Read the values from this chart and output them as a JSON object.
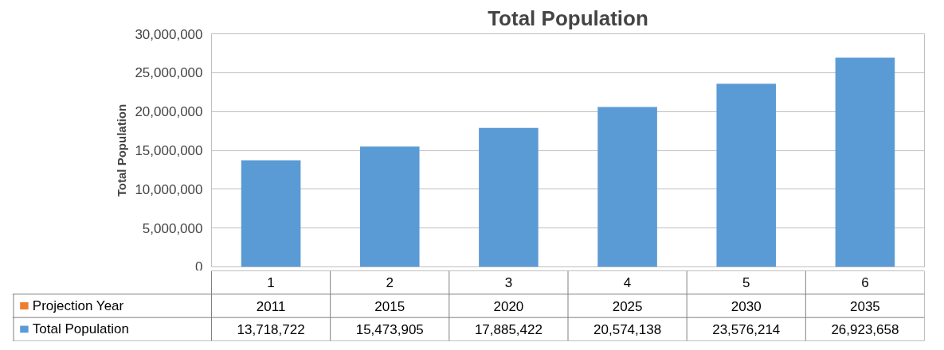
{
  "chart_data": {
    "type": "bar",
    "title": "Total Population",
    "ylabel": "Total Population",
    "stacked": true,
    "categories": [
      "1",
      "2",
      "3",
      "4",
      "5",
      "6"
    ],
    "series": [
      {
        "name": "Total Population",
        "color": "#5b9bd5",
        "values": [
          13718722,
          15473905,
          17885422,
          20574138,
          23576214,
          26923658
        ],
        "value_labels": [
          "13,718,722",
          "15,473,905",
          "17,885,422",
          "20,574,138",
          "23,576,214",
          "26,923,658"
        ]
      },
      {
        "name": "Projection Year",
        "color": "#ed7d31",
        "values": [
          2011,
          2015,
          2020,
          2025,
          2030,
          2035
        ],
        "value_labels": [
          "2011",
          "2015",
          "2020",
          "2025",
          "2030",
          "2035"
        ]
      }
    ],
    "ylim": [
      0,
      30000000
    ],
    "yticks": [
      {
        "value": 0,
        "label": "0"
      },
      {
        "value": 5000000,
        "label": "5,000,000"
      },
      {
        "value": 10000000,
        "label": "10,000,000"
      },
      {
        "value": 15000000,
        "label": "15,000,000"
      },
      {
        "value": 20000000,
        "label": "20,000,000"
      },
      {
        "value": 25000000,
        "label": "25,000,000"
      },
      {
        "value": 30000000,
        "label": "30,000,000"
      }
    ],
    "grid": "y",
    "legend": "bottom"
  }
}
